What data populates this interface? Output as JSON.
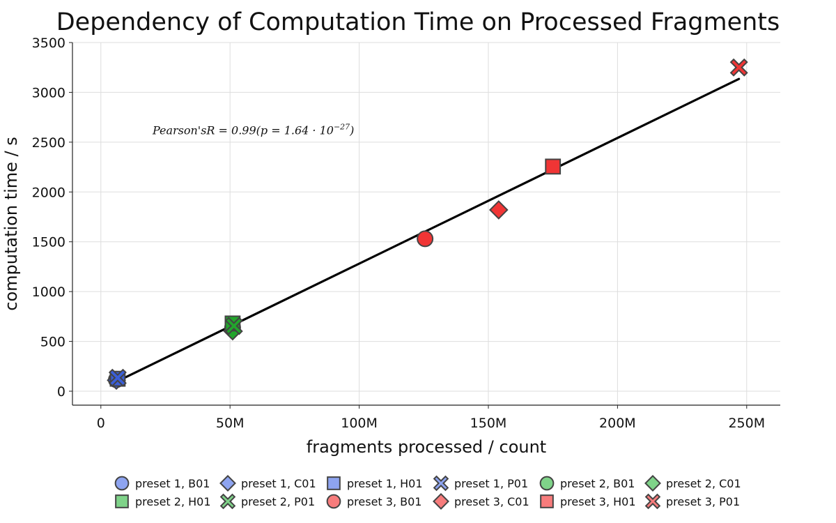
{
  "chart_data": {
    "type": "scatter",
    "title": "Dependency of Computation Time on Processed Fragments",
    "xlabel": "fragments processed / count",
    "ylabel": "computation time / s",
    "xlim": [
      -11000000,
      263000000
    ],
    "ylim": [
      -140,
      3500
    ],
    "x_ticks": [
      0,
      50000000,
      100000000,
      150000000,
      200000000,
      250000000
    ],
    "x_tick_labels": [
      "0",
      "50M",
      "100M",
      "150M",
      "200M",
      "250M"
    ],
    "y_ticks": [
      0,
      500,
      1000,
      1500,
      2000,
      2500,
      3000,
      3500
    ],
    "y_tick_labels": [
      "0",
      "500",
      "1000",
      "1500",
      "2000",
      "2500",
      "3000",
      "3500"
    ],
    "grid": true,
    "legend_position": "bottom",
    "annotation": {
      "prefix": "Pearson'sR = 0.99(p = 1.64 · 10",
      "exponent": "−27",
      "suffix": ")",
      "x": 20000000,
      "y": 2580
    },
    "fit_line": {
      "x": [
        6000000,
        247000000
      ],
      "y": [
        95,
        3135
      ],
      "color": "#000000"
    },
    "colors": {
      "preset 1": "#3a5fd9",
      "preset 2": "#22a52c",
      "preset 3": "#f03535"
    },
    "legend_colors": {
      "preset 1": "#8ea4f0",
      "preset 2": "#7fd389",
      "preset 3": "#f77c7c"
    },
    "series": [
      {
        "name": "preset 1, B01",
        "preset": "preset 1",
        "marker": "circle",
        "x": 6000000,
        "y": 115
      },
      {
        "name": "preset 1, C01",
        "preset": "preset 1",
        "marker": "diamond",
        "x": 6000000,
        "y": 110
      },
      {
        "name": "preset 1, H01",
        "preset": "preset 1",
        "marker": "square",
        "x": 6500000,
        "y": 125
      },
      {
        "name": "preset 1, P01",
        "preset": "preset 1",
        "marker": "x",
        "x": 6500000,
        "y": 135
      },
      {
        "name": "preset 2, B01",
        "preset": "preset 2",
        "marker": "circle",
        "x": 51000000,
        "y": 640
      },
      {
        "name": "preset 2, C01",
        "preset": "preset 2",
        "marker": "diamond",
        "x": 51000000,
        "y": 605
      },
      {
        "name": "preset 2, H01",
        "preset": "preset 2",
        "marker": "square",
        "x": 51000000,
        "y": 680
      },
      {
        "name": "preset 2, P01",
        "preset": "preset 2",
        "marker": "x",
        "x": 51500000,
        "y": 655
      },
      {
        "name": "preset 3, B01",
        "preset": "preset 3",
        "marker": "circle",
        "x": 125500000,
        "y": 1530
      },
      {
        "name": "preset 3, C01",
        "preset": "preset 3",
        "marker": "diamond",
        "x": 154000000,
        "y": 1820
      },
      {
        "name": "preset 3, H01",
        "preset": "preset 3",
        "marker": "square",
        "x": 175000000,
        "y": 2255
      },
      {
        "name": "preset 3, P01",
        "preset": "preset 3",
        "marker": "x",
        "x": 247000000,
        "y": 3250
      }
    ]
  }
}
